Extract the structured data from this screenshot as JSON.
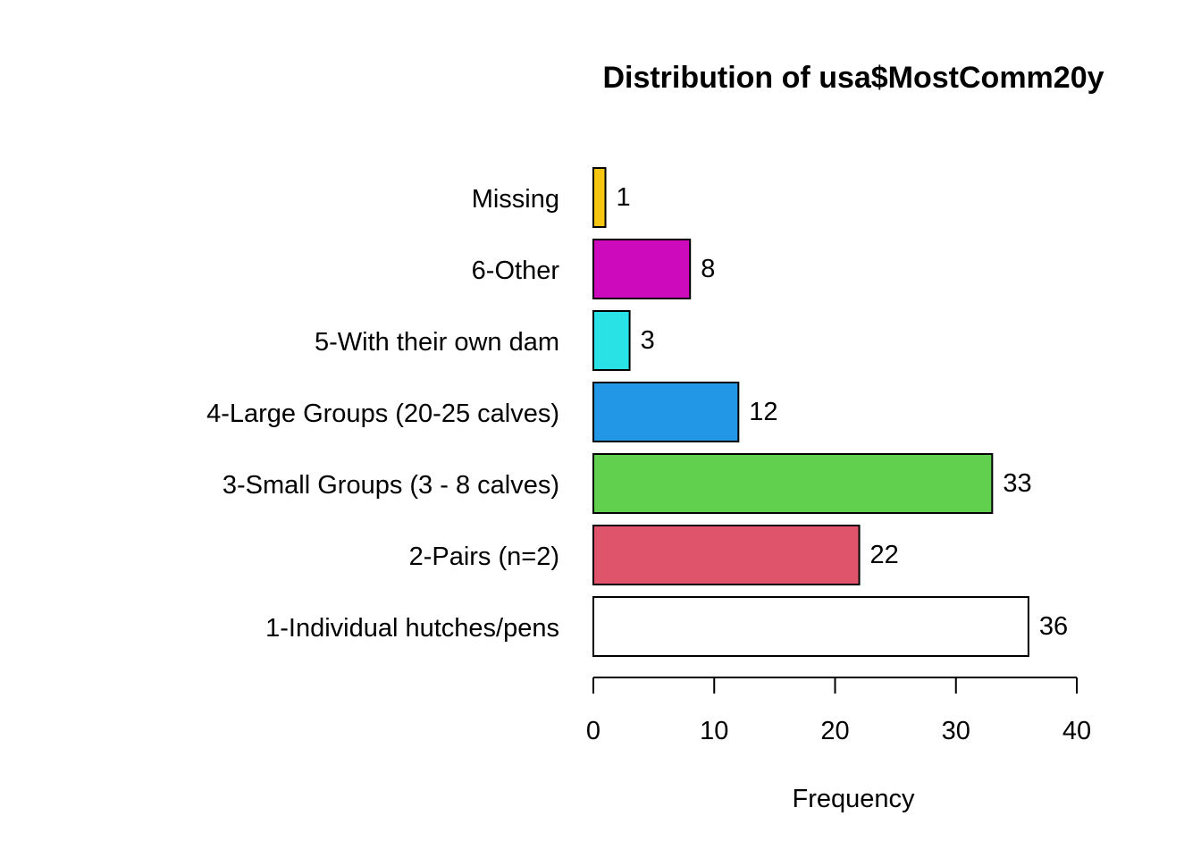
{
  "chart_data": {
    "type": "bar",
    "orientation": "horizontal",
    "title": "Distribution of usa$MostComm20y",
    "xlabel": "Frequency",
    "ylabel": "",
    "categories": [
      "1-Individual hutches/pens",
      "2-Pairs (n=2)",
      "3-Small Groups (3 - 8 calves)",
      "4-Large Groups (20-25 calves)",
      "5-With their own dam",
      "6-Other",
      "Missing"
    ],
    "values": [
      36,
      22,
      33,
      12,
      3,
      8,
      1
    ],
    "colors": [
      "#FFFFFF",
      "#DF536B",
      "#61D04F",
      "#2297E6",
      "#28E2E5",
      "#CD0BBC",
      "#F5C710"
    ],
    "xlim": [
      0,
      40
    ],
    "xticks": [
      0,
      10,
      20,
      30,
      40
    ],
    "grid": false,
    "legend": "none"
  }
}
